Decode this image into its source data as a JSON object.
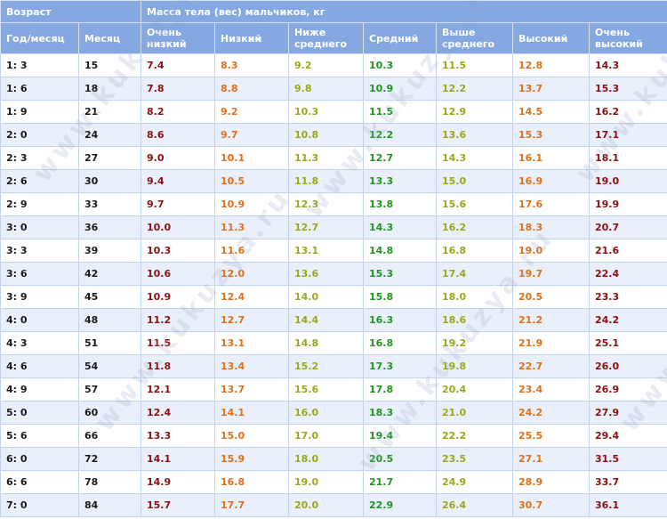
{
  "header": {
    "age_group": "Возраст",
    "weight_group": "Масса тела (вес) мальчиков, кг",
    "columns": [
      "Год/месяц",
      "Месяц",
      "Очень низкий",
      "Низкий",
      "Ниже среднего",
      "Средний",
      "Выше среднего",
      "Высокий",
      "Очень высокий"
    ]
  },
  "rows": [
    [
      "1: 3",
      "15",
      "7.4",
      "8.3",
      "9.2",
      "10.3",
      "11.5",
      "12.8",
      "14.3"
    ],
    [
      "1: 6",
      "18",
      "7.8",
      "8.8",
      "9.8",
      "10.9",
      "12.2",
      "13.7",
      "15.3"
    ],
    [
      "1: 9",
      "21",
      "8.2",
      "9.2",
      "10.3",
      "11.5",
      "12.9",
      "14.5",
      "16.2"
    ],
    [
      "2: 0",
      "24",
      "8.6",
      "9.7",
      "10.8",
      "12.2",
      "13.6",
      "15.3",
      "17.1"
    ],
    [
      "2: 3",
      "27",
      "9.0",
      "10.1",
      "11.3",
      "12.7",
      "14.3",
      "16.1",
      "18.1"
    ],
    [
      "2: 6",
      "30",
      "9.4",
      "10.5",
      "11.8",
      "13.3",
      "15.0",
      "16.9",
      "19.0"
    ],
    [
      "2: 9",
      "33",
      "9.7",
      "10.9",
      "12.3",
      "13.8",
      "15.6",
      "17.6",
      "19.9"
    ],
    [
      "3: 0",
      "36",
      "10.0",
      "11.3",
      "12.7",
      "14.3",
      "16.2",
      "18.3",
      "20.7"
    ],
    [
      "3: 3",
      "39",
      "10.3",
      "11.6",
      "13.1",
      "14.8",
      "16.8",
      "19.0",
      "21.6"
    ],
    [
      "3: 6",
      "42",
      "10.6",
      "12.0",
      "13.6",
      "15.3",
      "17.4",
      "19.7",
      "22.4"
    ],
    [
      "3: 9",
      "45",
      "10.9",
      "12.4",
      "14.0",
      "15.8",
      "18.0",
      "20.5",
      "23.3"
    ],
    [
      "4: 0",
      "48",
      "11.2",
      "12.7",
      "14.4",
      "16.3",
      "18.6",
      "21.2",
      "24.2"
    ],
    [
      "4: 3",
      "51",
      "11.5",
      "13.1",
      "14.8",
      "16.8",
      "19.2",
      "21.9",
      "25.1"
    ],
    [
      "4: 6",
      "54",
      "11.8",
      "13.4",
      "15.2",
      "17.3",
      "19.8",
      "22.7",
      "26.0"
    ],
    [
      "4: 9",
      "57",
      "12.1",
      "13.7",
      "15.6",
      "17.8",
      "20.4",
      "23.4",
      "26.9"
    ],
    [
      "5: 0",
      "60",
      "12.4",
      "14.1",
      "16.0",
      "18.3",
      "21.0",
      "24.2",
      "27.9"
    ],
    [
      "5: 6",
      "66",
      "13.3",
      "15.0",
      "17.0",
      "19.4",
      "22.2",
      "25.5",
      "29.4"
    ],
    [
      "6: 0",
      "72",
      "14.1",
      "15.9",
      "18.0",
      "20.5",
      "23.5",
      "27.1",
      "31.5"
    ],
    [
      "6: 6",
      "78",
      "14.9",
      "16.8",
      "19.0",
      "21.7",
      "24.9",
      "28.9",
      "33.7"
    ],
    [
      "7: 0",
      "84",
      "15.7",
      "17.7",
      "20.0",
      "22.9",
      "26.4",
      "30.7",
      "36.1"
    ]
  ],
  "watermark": "www.kukuzya.ru",
  "colors": {
    "header_bg": "#86a8e2",
    "very_low": "#8b1010",
    "low": "#e0701a",
    "below_avg": "#9aa818",
    "average": "#1e961e",
    "above_avg": "#9aa818",
    "high": "#e0701a",
    "very_high": "#8b1010"
  }
}
